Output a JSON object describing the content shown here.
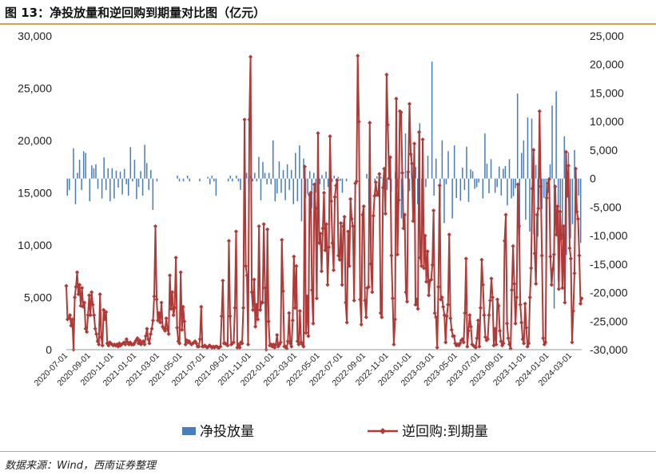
{
  "figure": {
    "title": "图 13：净投放量和逆回购到期量对比图（亿元）",
    "source": "数据来源：Wind，西南证券整理"
  },
  "colors": {
    "bar": "#4a7ebb",
    "line": "#b03a37",
    "rule": "#d8a24a",
    "axis": "#999999"
  },
  "chart_data": {
    "type": "bar+line",
    "left_axis": {
      "ylim": [
        0,
        30000
      ],
      "ticks": [
        "0",
        "5,000",
        "10,000",
        "15,000",
        "20,000",
        "25,000",
        "30,000"
      ]
    },
    "right_axis": {
      "ylim": [
        -30000,
        25000
      ],
      "ticks": [
        "-30,000",
        "-25,000",
        "-20,000",
        "-15,000",
        "-10,000",
        "-5,000",
        "0",
        "5,000",
        "10,000",
        "15,000",
        "20,000",
        "25,000"
      ]
    },
    "x_ticks": [
      "2020-07-01",
      "2020-09-01",
      "2020-11-01",
      "2021-01-01",
      "2021-03-01",
      "2021-05-01",
      "2021-07-01",
      "2021-09-01",
      "2021-11-01",
      "2022-01-01",
      "2022-03-01",
      "2022-05-01",
      "2022-07-01",
      "2022-09-01",
      "2022-11-01",
      "2023-01-01",
      "2023-03-01",
      "2023-05-01",
      "2023-07-01",
      "2023-09-01",
      "2023-11-01",
      "2024-01-01",
      "2024-03-01"
    ],
    "legend": {
      "placement": "bottom"
    },
    "series": [
      {
        "name": "净投放量",
        "type": "bar",
        "axis": "right",
        "values": [
          -3000,
          -2000,
          0,
          5300,
          -4500,
          1000,
          3300,
          -2000,
          4800,
          4500,
          0,
          -4000,
          2300,
          1800,
          2500,
          -1800,
          0,
          -3500,
          3700,
          -2000,
          1800,
          -4000,
          1800,
          -3500,
          1400,
          -1600,
          1200,
          -2800,
          1700,
          -1000,
          -3000,
          5500,
          -500,
          3300,
          -3600,
          -1500,
          1300,
          -3000,
          5900,
          2700,
          -2000,
          1500,
          -5500,
          0,
          -500,
          0,
          0,
          0,
          0,
          0,
          0,
          0,
          0,
          0,
          500,
          -500,
          0,
          -500,
          0,
          500,
          -500,
          0,
          0,
          0,
          0,
          -500,
          0,
          0,
          0,
          300,
          -1000,
          500,
          -500,
          -3000,
          0,
          0,
          0,
          0,
          0,
          -500,
          500,
          -500,
          0,
          500,
          -500,
          -2000,
          0,
          -500,
          1000,
          -1000,
          500,
          -500,
          1000,
          -500,
          3800,
          -3800,
          2900,
          1000,
          -1000,
          1000,
          -1000,
          6700,
          -4000,
          -2600,
          3000,
          -2500,
          1500,
          -3800,
          2500,
          -2000,
          1500,
          -4500,
          4500,
          -4000,
          5800,
          -7500,
          3500,
          -3400,
          -2700,
          1300,
          -5200,
          1000,
          -2500,
          1500,
          -1000,
          600,
          -2000,
          1200,
          -1500,
          1000,
          -600,
          500,
          -500,
          300,
          -400,
          -2500,
          0,
          -500,
          0,
          0,
          0,
          0,
          0,
          0,
          0,
          0,
          0,
          800,
          -4500,
          0,
          0,
          -500,
          400,
          0,
          300,
          -300,
          0,
          -2000,
          400,
          -2400,
          0,
          1200,
          -1500,
          8700,
          -7000,
          0,
          7900,
          1300,
          -2200,
          4300,
          -3800,
          2000,
          -4500,
          9700,
          -7900,
          0,
          -1500,
          4000,
          0,
          20500,
          -3000,
          3500,
          0,
          -5000,
          6700,
          -7800,
          -1000,
          4800,
          0,
          -7000,
          5800,
          -3400,
          0,
          -3900,
          1900,
          -2000,
          5600,
          -4100,
          1600,
          1300,
          -1800,
          -1500,
          -700,
          0,
          -3500,
          7900,
          2600,
          -2600,
          3400,
          0,
          -2500,
          -1500,
          2100,
          -3000,
          1700,
          2200,
          -4700,
          3400,
          -3500,
          -3100,
          -1700,
          14900,
          -10000,
          4500,
          6700,
          -7200,
          10700,
          -9300,
          10500,
          -9800,
          2400,
          -10200,
          9800,
          -5300,
          -3400,
          -13900,
          -2500,
          2500,
          12800,
          -22800,
          15300,
          -17900,
          -10900,
          -10700,
          7400,
          -13400,
          4600,
          -10500,
          -8000,
          5000,
          -3000,
          -3000,
          -11300
        ]
      },
      {
        "name": "逆回购:到期量",
        "type": "line",
        "axis": "left",
        "values": [
          6100,
          2900,
          3000,
          3300,
          2300,
          2900,
          0,
          5000,
          6000,
          7400,
          5300,
          6200,
          4200,
          5900,
          4100,
          4500,
          2000,
          1700,
          3300,
          5200,
          3300,
          5500,
          4300,
          3300,
          2000,
          1500,
          800,
          500,
          5300,
          1200,
          400,
          3800,
          2900,
          3600,
          600,
          400,
          700,
          600,
          500,
          400,
          500,
          400,
          500,
          300,
          600,
          400,
          500,
          600,
          700,
          500,
          1000,
          700,
          500,
          700,
          500,
          500,
          500,
          700,
          900,
          1100,
          600,
          900,
          500,
          700,
          800,
          500,
          1300,
          2000,
          1000,
          600,
          1500,
          2000,
          2800,
          5100,
          11800,
          4800,
          2800,
          3500,
          2600,
          4500,
          2200,
          2000,
          1800,
          3000,
          2000,
          1500,
          7100,
          3900,
          5500,
          3300,
          4000,
          8800,
          2100,
          800,
          600,
          7400,
          1900,
          4100,
          2700,
          500,
          900,
          700,
          800,
          600,
          500,
          600,
          700,
          800,
          600,
          300,
          300,
          1000,
          4100,
          300,
          300,
          400,
          300,
          200,
          300,
          400,
          300,
          200,
          300,
          200,
          300,
          300,
          200,
          200,
          300,
          3200,
          6600,
          600,
          600,
          500,
          400,
          10400,
          3200,
          500,
          600,
          700,
          4000,
          11300,
          200,
          500,
          200,
          700,
          600,
          4000,
          22000,
          8000,
          7100,
          500,
          22000,
          28000,
          5500,
          3800,
          6700,
          2200,
          4300,
          2900,
          11800,
          3800,
          4500,
          4500,
          12000,
          5900,
          0,
          11500,
          2700,
          400,
          500,
          300,
          500,
          200,
          500,
          1400,
          300,
          500,
          700,
          10500,
          5600,
          300,
          300,
          100,
          800,
          3500,
          600,
          300,
          2800,
          8900,
          4000,
          8000,
          800,
          500,
          3700,
          700,
          500,
          300,
          17500,
          1600,
          5100,
          1300,
          14800,
          15000,
          5700,
          2500,
          15800,
          13500,
          4900,
          20700,
          10200,
          11100,
          7500,
          11600,
          15000,
          9500,
          12000,
          6200,
          9800,
          20400,
          14200,
          10200,
          7600,
          14600,
          15700,
          16200,
          9000,
          8600,
          12100,
          6200,
          11800,
          12700,
          4500,
          2600,
          11300,
          8000,
          14400,
          12500,
          11800,
          4700,
          15900,
          16100,
          28100,
          21800,
          4800,
          2400,
          12900,
          13700,
          4700,
          3100,
          5900,
          6000,
          21700,
          8200,
          5500,
          12800,
          14700,
          16000,
          14800,
          14800,
          16800,
          3500,
          3100,
          15500,
          17300,
          13000,
          26300,
          21500,
          16400,
          18400,
          9000,
          4900,
          500,
          2900,
          24000,
          9100,
          14300,
          22800,
          22700,
          16900,
          11600,
          12900,
          5500,
          4600,
          17000,
          23500,
          18700,
          17800,
          12300,
          19700,
          4300,
          4800,
          3900,
          20800,
          8800,
          8000,
          20100,
          7800,
          10900,
          6500,
          9400,
          5200,
          6600,
          6700,
          8100,
          13300,
          3500,
          3100,
          200,
          6000,
          15700,
          4800,
          5000,
          4100,
          3300,
          700,
          3200,
          4300,
          11000,
          3000,
          1900,
          1300,
          1300,
          600,
          400,
          500,
          400,
          600,
          900,
          1000,
          700,
          3500,
          8700,
          300,
          1800,
          3300,
          2200,
          500,
          400,
          300,
          200,
          1100,
          2800,
          300,
          4000,
          8600,
          6200,
          3300,
          1200,
          900,
          1000,
          3300,
          4700,
          6800,
          5000,
          400,
          2000,
          500,
          4800,
          4200,
          1800,
          800,
          400,
          600,
          10400,
          12900,
          2500,
          1100,
          500,
          100,
          5700,
          9900,
          6300,
          2500,
          5000,
          15800,
          11800,
          4300,
          2600,
          1000,
          600,
          4400,
          2100,
          300,
          600,
          5000,
          7800,
          15400,
          19100,
          9200,
          6300,
          12900,
          13500,
          22800,
          15600,
          9000,
          1100,
          500,
          700,
          14500,
          15900,
          16300,
          8900,
          6200,
          7700,
          9100,
          15600,
          11000,
          13700,
          5800,
          13200,
          11000,
          5900,
          11800,
          4500,
          18900,
          14700,
          17600,
          9700,
          8700,
          700,
          3700,
          7300,
          17300,
          13200,
          12500,
          9000,
          4400,
          4900
        ]
      }
    ]
  }
}
